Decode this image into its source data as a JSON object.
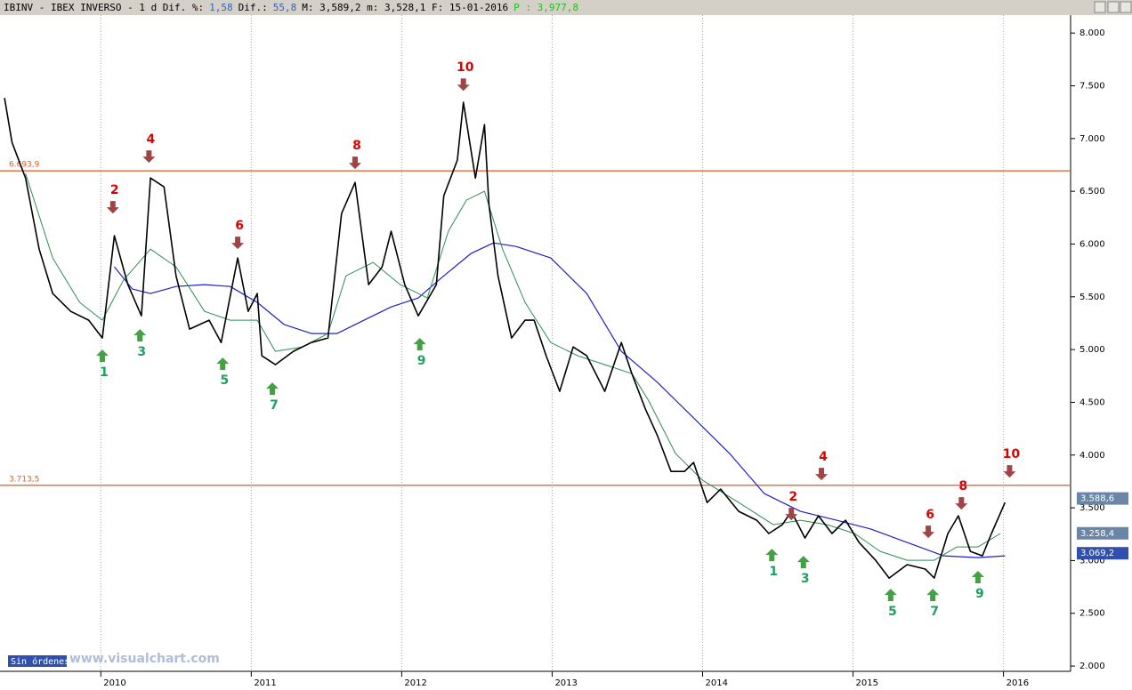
{
  "header": [
    {
      "text": "IBINV - IBEX INVERSO -  1 d Dif. %:",
      "color": "#000000"
    },
    {
      "text": "1,58",
      "color": "#3060c0"
    },
    {
      "text": "Dif.:",
      "color": "#000000"
    },
    {
      "text": "55,8",
      "color": "#3060c0"
    },
    {
      "text": "M: 3,589,2 m: 3,528,1 F: 15-01-2016",
      "color": "#000000"
    },
    {
      "text": "P : 3,977,8",
      "color": "#20c020"
    }
  ],
  "chart_data": {
    "type": "line",
    "grid": "x",
    "xlim": [
      2009.33,
      2016.44
    ],
    "xticks": [
      2010,
      2011,
      2012,
      2013,
      2014,
      2015,
      2016
    ],
    "ylim": [
      1950,
      8170
    ],
    "yticks": [
      {
        "value": 2000,
        "label": "2.000"
      },
      {
        "value": 2500,
        "label": "2.500"
      },
      {
        "value": 3000,
        "label": "3.000"
      },
      {
        "value": 3500,
        "label": "3.500"
      },
      {
        "value": 4000,
        "label": "4.000"
      },
      {
        "value": 4500,
        "label": "4.500"
      },
      {
        "value": 5000,
        "label": "5.000"
      },
      {
        "value": 5500,
        "label": "5.500"
      },
      {
        "value": 6000,
        "label": "6.000"
      },
      {
        "value": 6500,
        "label": "6.500"
      },
      {
        "value": 7000,
        "label": "7.000"
      },
      {
        "value": 7500,
        "label": "7.500"
      },
      {
        "value": 8000,
        "label": "8.000"
      }
    ],
    "series": [
      {
        "color": "#000000",
        "width": 1.6,
        "x": [
          2009.36,
          2009.41,
          2009.5,
          2009.59,
          2009.68,
          2009.8,
          2009.92,
          2010.01,
          2010.09,
          2010.18,
          2010.27,
          2010.33,
          2010.42,
          2010.5,
          2010.59,
          2010.72,
          2010.8,
          2010.91,
          2010.98,
          2011.04,
          2011.07,
          2011.16,
          2011.28,
          2011.4,
          2011.51,
          2011.6,
          2011.69,
          2011.78,
          2011.87,
          2011.93,
          2012.02,
          2012.11,
          2012.23,
          2012.28,
          2012.37,
          2012.41,
          2012.49,
          2012.55,
          2012.58,
          2012.64,
          2012.73,
          2012.82,
          2012.88,
          2012.96,
          2013.05,
          2013.14,
          2013.23,
          2013.35,
          2013.46,
          2013.53,
          2013.62,
          2013.7,
          2013.79,
          2013.88,
          2013.94,
          2014.03,
          2014.12,
          2014.24,
          2014.36,
          2014.44,
          2014.53,
          2014.59,
          2014.68,
          2014.77,
          2014.86,
          2014.95,
          2015.04,
          2015.15,
          2015.24,
          2015.36,
          2015.48,
          2015.54,
          2015.63,
          2015.7,
          2015.78,
          2015.86,
          2015.92,
          2016.01
        ],
        "values": [
          7385,
          6963,
          6626,
          5952,
          5531,
          5362,
          5278,
          5110,
          6079,
          5615,
          5320,
          6626,
          6542,
          5699,
          5194,
          5278,
          5067,
          5868,
          5362,
          5531,
          4941,
          4857,
          4983,
          5067,
          5110,
          6289,
          6584,
          5615,
          5784,
          6121,
          5615,
          5320,
          5615,
          6458,
          6795,
          7343,
          6626,
          7132,
          6374,
          5699,
          5110,
          5278,
          5278,
          4941,
          4604,
          5025,
          4941,
          4604,
          5067,
          4772,
          4435,
          4183,
          3845,
          3845,
          3930,
          3550,
          3677,
          3466,
          3382,
          3256,
          3340,
          3466,
          3213,
          3424,
          3256,
          3382,
          3171,
          3003,
          2834,
          2961,
          2919,
          2834,
          3256,
          3424,
          3087,
          3045,
          3256,
          3550
        ]
      },
      {
        "color": "#2e8b57",
        "width": 1,
        "x": [
          2009.5,
          2009.68,
          2009.86,
          2010.01,
          2010.15,
          2010.33,
          2010.5,
          2010.69,
          2010.86,
          2011.04,
          2011.16,
          2011.34,
          2011.51,
          2011.63,
          2011.81,
          2011.99,
          2012.17,
          2012.31,
          2012.43,
          2012.55,
          2012.67,
          2012.82,
          2012.99,
          2013.17,
          2013.35,
          2013.53,
          2013.64,
          2013.82,
          2014.0,
          2014.24,
          2014.47,
          2014.65,
          2014.83,
          2015.01,
          2015.18,
          2015.36,
          2015.54,
          2015.69,
          2015.83,
          2015.98
        ],
        "values": [
          6669,
          5868,
          5447,
          5278,
          5657,
          5952,
          5784,
          5362,
          5278,
          5278,
          4983,
          5025,
          5152,
          5699,
          5826,
          5615,
          5489,
          6121,
          6416,
          6500,
          5952,
          5447,
          5067,
          4941,
          4857,
          4772,
          4520,
          4014,
          3761,
          3550,
          3340,
          3382,
          3340,
          3256,
          3087,
          3003,
          3003,
          3129,
          3129,
          3256
        ]
      },
      {
        "color": "#1f1fcc",
        "width": 1.2,
        "x": [
          2010.09,
          2010.21,
          2010.33,
          2010.5,
          2010.69,
          2010.86,
          2011.04,
          2011.22,
          2011.4,
          2011.57,
          2011.75,
          2011.93,
          2012.11,
          2012.28,
          2012.46,
          2012.61,
          2012.76,
          2012.99,
          2013.23,
          2013.46,
          2013.7,
          2013.94,
          2014.18,
          2014.41,
          2014.65,
          2014.89,
          2015.12,
          2015.36,
          2015.6,
          2015.83,
          2016.01
        ],
        "values": [
          5784,
          5573,
          5531,
          5598,
          5615,
          5598,
          5447,
          5236,
          5152,
          5152,
          5278,
          5404,
          5489,
          5699,
          5910,
          6011,
          5977,
          5868,
          5531,
          4983,
          4688,
          4351,
          4014,
          3635,
          3466,
          3382,
          3298,
          3171,
          3045,
          3028,
          3045
        ]
      }
    ],
    "levels": [
      {
        "value": 6693.9,
        "label": "6.693,9",
        "color": "#e05a20"
      },
      {
        "value": 3713.5,
        "label": "3.713,5",
        "color": "#e05a20"
      }
    ],
    "price_tags": [
      {
        "value": 3588.6,
        "label": "3.588,6",
        "color": "#6a86a6"
      },
      {
        "value": 3258.4,
        "label": "3.258,4",
        "color": "#6a86a6"
      },
      {
        "value": 3069.2,
        "label": "3.069,2",
        "color": "#3050b0"
      }
    ],
    "annotations": [
      {
        "text": "2",
        "x": 2010.08,
        "y": 6289,
        "dir": "down"
      },
      {
        "text": "4",
        "x": 2010.32,
        "y": 6770,
        "dir": "down"
      },
      {
        "text": "6",
        "x": 2010.91,
        "y": 5952,
        "dir": "down"
      },
      {
        "text": "8",
        "x": 2011.69,
        "y": 6711,
        "dir": "down"
      },
      {
        "text": "10",
        "x": 2012.41,
        "y": 7452,
        "dir": "down"
      },
      {
        "text": "2",
        "x": 2014.59,
        "y": 3382,
        "dir": "down"
      },
      {
        "text": "4",
        "x": 2014.79,
        "y": 3761,
        "dir": "down"
      },
      {
        "text": "6",
        "x": 2015.5,
        "y": 3213,
        "dir": "down"
      },
      {
        "text": "8",
        "x": 2015.72,
        "y": 3483,
        "dir": "down"
      },
      {
        "text": "10",
        "x": 2016.04,
        "y": 3786,
        "dir": "down"
      },
      {
        "text": "1",
        "x": 2010.01,
        "y": 5000,
        "dir": "up"
      },
      {
        "text": "3",
        "x": 2010.26,
        "y": 5194,
        "dir": "up"
      },
      {
        "text": "5",
        "x": 2010.81,
        "y": 4924,
        "dir": "up"
      },
      {
        "text": "7",
        "x": 2011.14,
        "y": 4688,
        "dir": "up"
      },
      {
        "text": "9",
        "x": 2012.12,
        "y": 5110,
        "dir": "up"
      },
      {
        "text": "1",
        "x": 2014.46,
        "y": 3112,
        "dir": "up"
      },
      {
        "text": "3",
        "x": 2014.67,
        "y": 3045,
        "dir": "up"
      },
      {
        "text": "5",
        "x": 2015.25,
        "y": 2733,
        "dir": "up"
      },
      {
        "text": "7",
        "x": 2015.53,
        "y": 2733,
        "dir": "up"
      },
      {
        "text": "9",
        "x": 2015.83,
        "y": 2902,
        "dir": "up"
      }
    ]
  },
  "footer": {
    "button": "Sin órdenes",
    "watermark": "www.visualchart.com"
  }
}
